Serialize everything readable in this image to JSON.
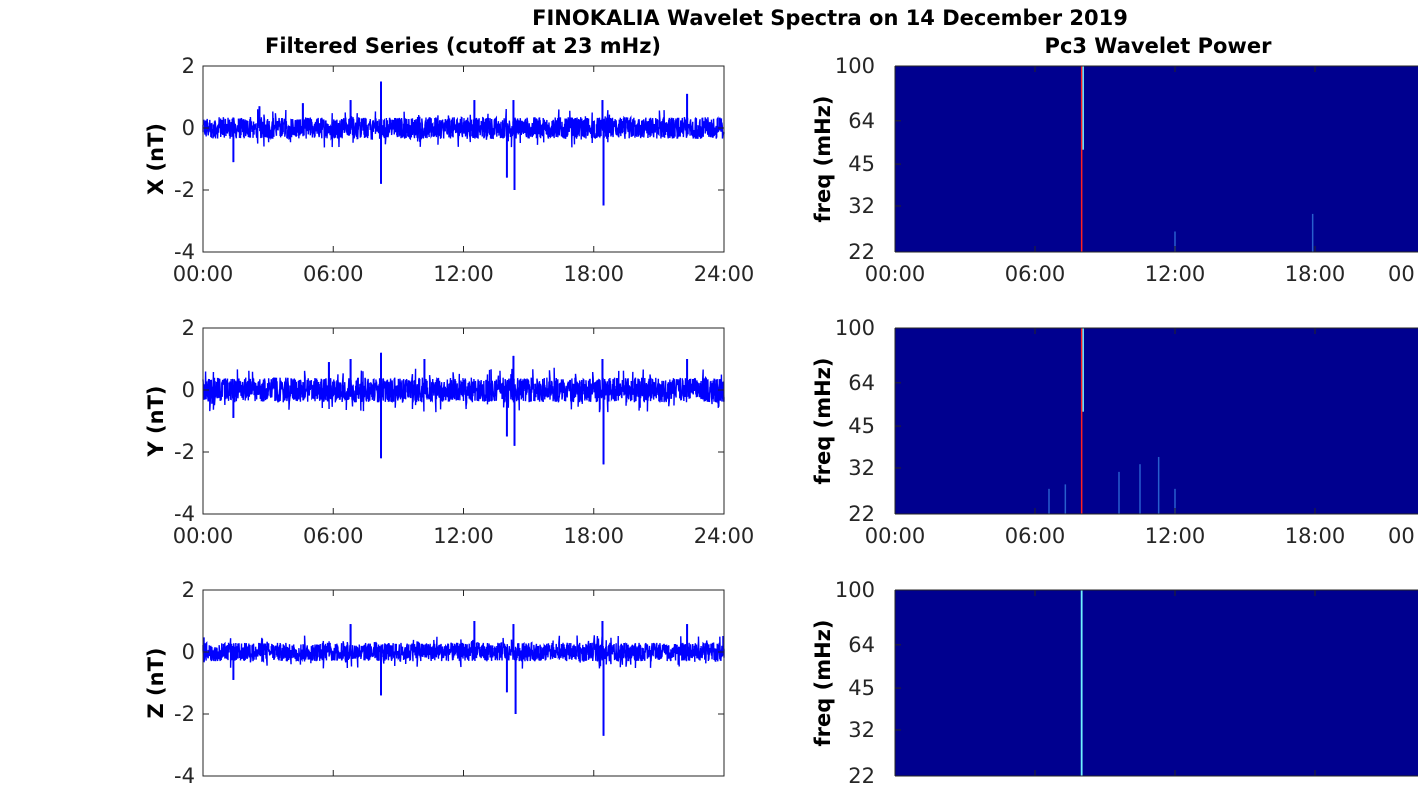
{
  "figure": {
    "title": "FINOKALIA Wavelet Spectra on 14 December 2019",
    "left_column_title": "Filtered Series (cutoff at 23 mHz)",
    "right_column_title": "Pc3 Wavelet Power"
  },
  "colors": {
    "series": "#0000ff",
    "spectrogram_background": "#00008f",
    "axis": "#262626",
    "hot_line": "#ff2020",
    "cool_line": "#6ff0ff"
  },
  "chart_data": [
    {
      "type": "line",
      "title": "Filtered Series (cutoff at 23 mHz)",
      "ylabel": "X (nT)",
      "xlim": [
        0,
        24
      ],
      "ylim": [
        -4,
        2
      ],
      "xticks": [
        "00:00",
        "06:00",
        "12:00",
        "18:00",
        "24:00"
      ],
      "yticks": [
        "2",
        "0",
        "-2",
        "-4"
      ],
      "noise_amplitude": 0.35,
      "spikes": [
        {
          "x": 8.2,
          "y": 1.5
        },
        {
          "x": 8.2,
          "y": -1.8
        },
        {
          "x": 14.0,
          "y": -1.6
        },
        {
          "x": 14.3,
          "y": 0.9
        },
        {
          "x": 14.35,
          "y": -2.0
        },
        {
          "x": 18.4,
          "y": 0.9
        },
        {
          "x": 18.45,
          "y": -2.5
        },
        {
          "x": 22.3,
          "y": 1.1
        },
        {
          "x": 4.6,
          "y": 0.8
        },
        {
          "x": 6.8,
          "y": 0.9
        },
        {
          "x": 12.5,
          "y": 0.9
        },
        {
          "x": 2.6,
          "y": 0.7
        },
        {
          "x": 1.4,
          "y": -1.1
        }
      ]
    },
    {
      "type": "line",
      "title": "",
      "ylabel": "Y (nT)",
      "xlim": [
        0,
        24
      ],
      "ylim": [
        -4,
        2
      ],
      "xticks": [
        "00:00",
        "06:00",
        "12:00",
        "18:00",
        "24:00"
      ],
      "yticks": [
        "2",
        "0",
        "-2",
        "-4"
      ],
      "noise_amplitude": 0.4,
      "spikes": [
        {
          "x": 8.2,
          "y": 1.2
        },
        {
          "x": 8.2,
          "y": -2.2
        },
        {
          "x": 14.0,
          "y": -1.5
        },
        {
          "x": 14.3,
          "y": 1.1
        },
        {
          "x": 14.35,
          "y": -1.8
        },
        {
          "x": 18.4,
          "y": 1.0
        },
        {
          "x": 18.45,
          "y": -2.4
        },
        {
          "x": 22.3,
          "y": 1.0
        },
        {
          "x": 5.8,
          "y": 0.9
        },
        {
          "x": 6.8,
          "y": 1.0
        },
        {
          "x": 10.2,
          "y": 1.0
        },
        {
          "x": 1.4,
          "y": -0.9
        }
      ]
    },
    {
      "type": "line",
      "title": "",
      "ylabel": "Z (nT)",
      "xlim": [
        0,
        24
      ],
      "ylim": [
        -4,
        2
      ],
      "xticks": [],
      "yticks": [
        "2",
        "0",
        "-2",
        "-4"
      ],
      "noise_amplitude": 0.3,
      "spikes": [
        {
          "x": 8.2,
          "y": -1.4
        },
        {
          "x": 6.8,
          "y": 0.9
        },
        {
          "x": 14.0,
          "y": -1.3
        },
        {
          "x": 14.3,
          "y": 0.9
        },
        {
          "x": 14.4,
          "y": -2.0
        },
        {
          "x": 18.4,
          "y": 1.0
        },
        {
          "x": 18.45,
          "y": -2.7
        },
        {
          "x": 22.3,
          "y": 0.9
        },
        {
          "x": 12.5,
          "y": 1.0
        },
        {
          "x": 1.4,
          "y": -0.9
        }
      ]
    },
    {
      "type": "heatmap",
      "title": "Pc3 Wavelet Power",
      "ylabel": "freq (mHz)",
      "xlim": [
        0,
        24
      ],
      "ylim": [
        22,
        100
      ],
      "yscale": "log",
      "xticks": [
        "00:00",
        "06:00",
        "12:00",
        "18:00",
        "00"
      ],
      "yticks": [
        "100",
        "64",
        "45",
        "32",
        "22"
      ],
      "ytick_values": [
        100,
        64,
        45,
        32,
        22
      ],
      "features": [
        {
          "x": 8.0,
          "f_low": 22,
          "f_high": 100,
          "level": "high"
        },
        {
          "x": 12.0,
          "f_low": 22,
          "f_high": 26,
          "level": "low"
        },
        {
          "x": 17.9,
          "f_low": 22,
          "f_high": 30,
          "level": "low"
        }
      ]
    },
    {
      "type": "heatmap",
      "title": "",
      "ylabel": "freq (mHz)",
      "xlim": [
        0,
        24
      ],
      "ylim": [
        22,
        100
      ],
      "yscale": "log",
      "xticks": [
        "00:00",
        "06:00",
        "12:00",
        "18:00",
        "00"
      ],
      "yticks": [
        "100",
        "64",
        "45",
        "32",
        "22"
      ],
      "ytick_values": [
        100,
        64,
        45,
        32,
        22
      ],
      "features": [
        {
          "x": 8.0,
          "f_low": 22,
          "f_high": 100,
          "level": "high"
        },
        {
          "x": 6.6,
          "f_low": 22,
          "f_high": 27,
          "level": "low"
        },
        {
          "x": 7.3,
          "f_low": 22,
          "f_high": 28,
          "level": "low"
        },
        {
          "x": 9.6,
          "f_low": 22,
          "f_high": 31,
          "level": "low"
        },
        {
          "x": 10.5,
          "f_low": 22,
          "f_high": 33,
          "level": "low"
        },
        {
          "x": 11.3,
          "f_low": 22,
          "f_high": 35,
          "level": "low"
        },
        {
          "x": 12.0,
          "f_low": 22,
          "f_high": 27,
          "level": "low"
        }
      ]
    },
    {
      "type": "heatmap",
      "title": "",
      "ylabel": "freq (mHz)",
      "xlim": [
        0,
        24
      ],
      "ylim": [
        22,
        100
      ],
      "yscale": "log",
      "xticks": [],
      "yticks": [
        "100",
        "64",
        "45",
        "32",
        "22"
      ],
      "ytick_values": [
        100,
        64,
        45,
        32,
        22
      ],
      "features": [
        {
          "x": 8.0,
          "f_low": 22,
          "f_high": 100,
          "level": "cool"
        }
      ]
    }
  ]
}
